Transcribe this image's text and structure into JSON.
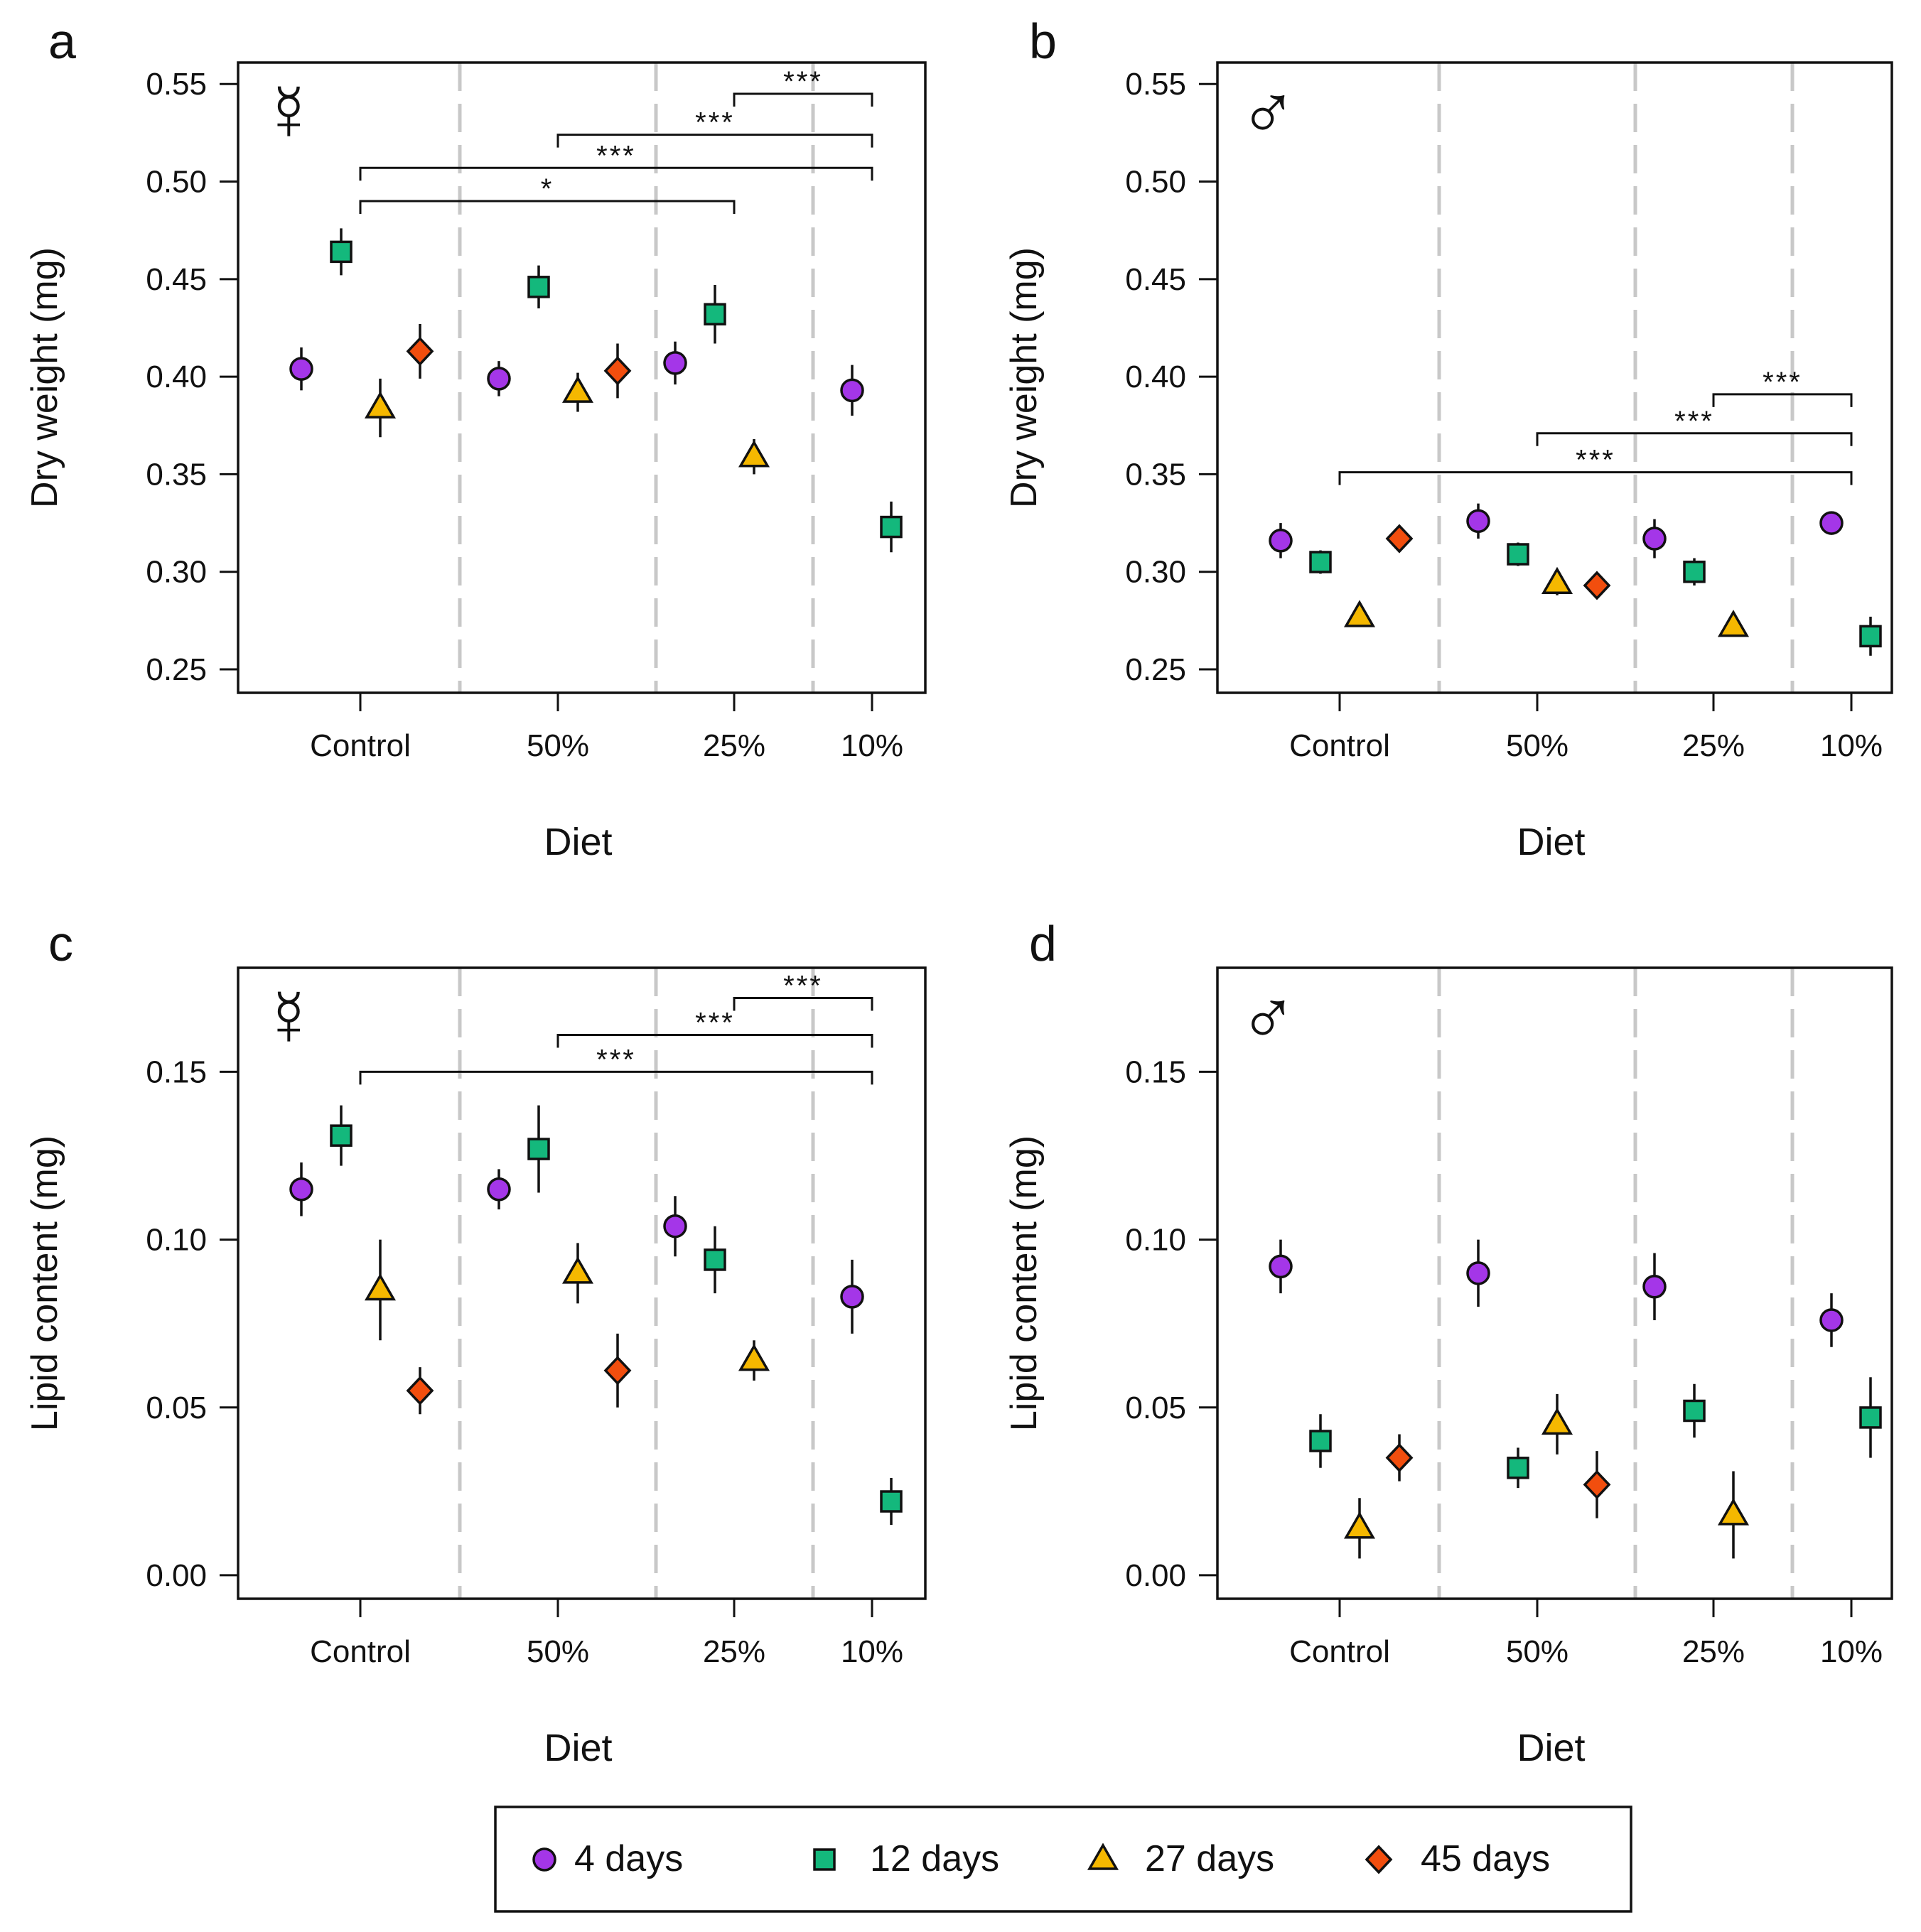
{
  "figure": {
    "diet_labels": [
      "Control",
      "50%",
      "25%",
      "10%"
    ],
    "xlabel": "Diet",
    "legend": [
      {
        "label": "4 days",
        "shape": "circle",
        "color": "#a436e8"
      },
      {
        "label": "12 days",
        "shape": "square",
        "color": "#14b87c"
      },
      {
        "label": "27 days",
        "shape": "triangle",
        "color": "#f5b800"
      },
      {
        "label": "45 days",
        "shape": "diamond",
        "color": "#f24e0e"
      }
    ],
    "colors": {
      "sig": "#1fd18d",
      "divider": "#c8c8c8",
      "axis": "#111111"
    }
  },
  "chart_data": [
    {
      "type": "scatter",
      "panel": "a",
      "sex_symbol": "☿",
      "ylabel": "Dry weight (mg)",
      "ylim": [
        0.238,
        0.561
      ],
      "yticks": [
        0.25,
        0.3,
        0.35,
        0.4,
        0.45,
        0.5,
        0.55
      ],
      "ytick_labels": [
        "0.25",
        "0.30",
        "0.35",
        "0.40",
        "0.45",
        "0.50",
        "0.55"
      ],
      "series": [
        {
          "name": "4 days",
          "points": [
            {
              "diet": "Control",
              "y": 0.404,
              "err": 0.011
            },
            {
              "diet": "50%",
              "y": 0.399,
              "err": 0.009
            },
            {
              "diet": "25%",
              "y": 0.407,
              "err": 0.011
            },
            {
              "diet": "10%",
              "y": 0.393,
              "err": 0.013
            }
          ]
        },
        {
          "name": "12 days",
          "points": [
            {
              "diet": "Control",
              "y": 0.464,
              "err": 0.012
            },
            {
              "diet": "50%",
              "y": 0.446,
              "err": 0.011
            },
            {
              "diet": "25%",
              "y": 0.432,
              "err": 0.015
            },
            {
              "diet": "10%",
              "y": 0.323,
              "err": 0.013
            }
          ]
        },
        {
          "name": "27 days",
          "points": [
            {
              "diet": "Control",
              "y": 0.384,
              "err": 0.015
            },
            {
              "diet": "50%",
              "y": 0.392,
              "err": 0.01
            },
            {
              "diet": "25%",
              "y": 0.359,
              "err": 0.009
            }
          ]
        },
        {
          "name": "45 days",
          "points": [
            {
              "diet": "Control",
              "y": 0.413,
              "err": 0.014
            },
            {
              "diet": "50%",
              "y": 0.403,
              "err": 0.014
            }
          ]
        }
      ],
      "significance": [
        {
          "from": "25%",
          "to": "10%",
          "y": 0.545,
          "label": "***"
        },
        {
          "from": "50%",
          "to": "10%",
          "y": 0.524,
          "label": "***"
        },
        {
          "from": "Control",
          "to": "10%",
          "y": 0.507,
          "label": "***"
        },
        {
          "from": "Control",
          "to": "25%",
          "y": 0.49,
          "label": "*"
        }
      ]
    },
    {
      "type": "scatter",
      "panel": "b",
      "sex_symbol": "♂",
      "ylabel": "Dry weight (mg)",
      "ylim": [
        0.238,
        0.561
      ],
      "yticks": [
        0.25,
        0.3,
        0.35,
        0.4,
        0.45,
        0.5,
        0.55
      ],
      "ytick_labels": [
        "0.25",
        "0.30",
        "0.35",
        "0.40",
        "0.45",
        "0.50",
        "0.55"
      ],
      "series": [
        {
          "name": "4 days",
          "points": [
            {
              "diet": "Control",
              "y": 0.316,
              "err": 0.009
            },
            {
              "diet": "50%",
              "y": 0.326,
              "err": 0.009
            },
            {
              "diet": "25%",
              "y": 0.317,
              "err": 0.01
            },
            {
              "diet": "10%",
              "y": 0.325,
              "err": 0.005
            }
          ]
        },
        {
          "name": "12 days",
          "points": [
            {
              "diet": "Control",
              "y": 0.305,
              "err": 0.006
            },
            {
              "diet": "50%",
              "y": 0.309,
              "err": 0.006
            },
            {
              "diet": "25%",
              "y": 0.3,
              "err": 0.007
            },
            {
              "diet": "10%",
              "y": 0.267,
              "err": 0.01
            }
          ]
        },
        {
          "name": "27 days",
          "points": [
            {
              "diet": "Control",
              "y": 0.277,
              "err": 0.005
            },
            {
              "diet": "50%",
              "y": 0.294,
              "err": 0.006
            },
            {
              "diet": "25%",
              "y": 0.272,
              "err": 0.004
            }
          ]
        },
        {
          "name": "45 days",
          "points": [
            {
              "diet": "Control",
              "y": 0.317,
              "err": 0.003
            },
            {
              "diet": "50%",
              "y": 0.293,
              "err": 0.004
            }
          ]
        }
      ],
      "significance": [
        {
          "from": "25%",
          "to": "10%",
          "y": 0.391,
          "label": "***"
        },
        {
          "from": "50%",
          "to": "10%",
          "y": 0.371,
          "label": "***"
        },
        {
          "from": "Control",
          "to": "10%",
          "y": 0.351,
          "label": "***"
        }
      ]
    },
    {
      "type": "scatter",
      "panel": "c",
      "sex_symbol": "☿",
      "ylabel": "Lipid content (mg)",
      "ylim": [
        -0.007,
        0.181
      ],
      "yticks": [
        0.0,
        0.05,
        0.1,
        0.15
      ],
      "ytick_labels": [
        "0.00",
        "0.05",
        "0.10",
        "0.15"
      ],
      "series": [
        {
          "name": "4 days",
          "points": [
            {
              "diet": "Control",
              "y": 0.115,
              "err": 0.008
            },
            {
              "diet": "50%",
              "y": 0.115,
              "err": 0.006
            },
            {
              "diet": "25%",
              "y": 0.104,
              "err": 0.009
            },
            {
              "diet": "10%",
              "y": 0.083,
              "err": 0.011
            }
          ]
        },
        {
          "name": "12 days",
          "points": [
            {
              "diet": "Control",
              "y": 0.131,
              "err": 0.009
            },
            {
              "diet": "50%",
              "y": 0.127,
              "err": 0.013
            },
            {
              "diet": "25%",
              "y": 0.094,
              "err": 0.01
            },
            {
              "diet": "10%",
              "y": 0.022,
              "err": 0.007
            }
          ]
        },
        {
          "name": "27 days",
          "points": [
            {
              "diet": "Control",
              "y": 0.085,
              "err": 0.015
            },
            {
              "diet": "50%",
              "y": 0.09,
              "err": 0.009
            },
            {
              "diet": "25%",
              "y": 0.064,
              "err": 0.006
            }
          ]
        },
        {
          "name": "45 days",
          "points": [
            {
              "diet": "Control",
              "y": 0.055,
              "err": 0.007
            },
            {
              "diet": "50%",
              "y": 0.061,
              "err": 0.011
            }
          ]
        }
      ],
      "significance": [
        {
          "from": "25%",
          "to": "10%",
          "y": 0.172,
          "label": "***"
        },
        {
          "from": "50%",
          "to": "10%",
          "y": 0.161,
          "label": "***"
        },
        {
          "from": "Control",
          "to": "10%",
          "y": 0.15,
          "label": "***"
        }
      ]
    },
    {
      "type": "scatter",
      "panel": "d",
      "sex_symbol": "♂",
      "ylabel": "Lipid content (mg)",
      "ylim": [
        -0.007,
        0.181
      ],
      "yticks": [
        0.0,
        0.05,
        0.1,
        0.15
      ],
      "ytick_labels": [
        "0.00",
        "0.05",
        "0.10",
        "0.15"
      ],
      "series": [
        {
          "name": "4 days",
          "points": [
            {
              "diet": "Control",
              "y": 0.092,
              "err": 0.008
            },
            {
              "diet": "50%",
              "y": 0.09,
              "err": 0.01
            },
            {
              "diet": "25%",
              "y": 0.086,
              "err": 0.01
            },
            {
              "diet": "10%",
              "y": 0.076,
              "err": 0.008
            }
          ]
        },
        {
          "name": "12 days",
          "points": [
            {
              "diet": "Control",
              "y": 0.04,
              "err": 0.008
            },
            {
              "diet": "50%",
              "y": 0.032,
              "err": 0.006
            },
            {
              "diet": "25%",
              "y": 0.049,
              "err": 0.008
            },
            {
              "diet": "10%",
              "y": 0.047,
              "err": 0.012
            }
          ]
        },
        {
          "name": "27 days",
          "points": [
            {
              "diet": "Control",
              "y": 0.014,
              "err": 0.009
            },
            {
              "diet": "50%",
              "y": 0.045,
              "err": 0.009
            },
            {
              "diet": "25%",
              "y": 0.018,
              "err": 0.013
            }
          ]
        },
        {
          "name": "45 days",
          "points": [
            {
              "diet": "Control",
              "y": 0.035,
              "err": 0.007
            },
            {
              "diet": "50%",
              "y": 0.027,
              "err": 0.01
            }
          ]
        }
      ],
      "significance": []
    }
  ]
}
